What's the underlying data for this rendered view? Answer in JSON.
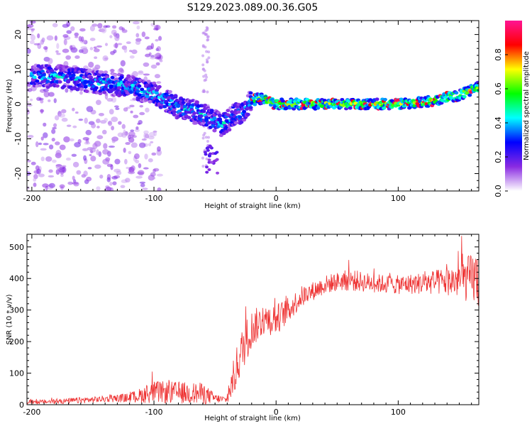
{
  "title": "S129.2023.089.00.36.G05",
  "chart_data": [
    {
      "type": "heatmap",
      "xlabel": "Height of straight line (km)",
      "ylabel": "Frequency (Hz)",
      "xlim": [
        -204,
        166
      ],
      "ylim": [
        -25,
        24
      ],
      "xticks": [
        -200,
        -100,
        0,
        100
      ],
      "yticks": [
        20,
        10,
        0,
        -10,
        -20
      ],
      "colorbar": {
        "label": "Normalized spectral amplitude",
        "range": [
          0.0,
          1.0
        ],
        "ticks": [
          "0.0",
          "0.2",
          "0.4",
          "0.6",
          "0.8"
        ],
        "colormap": [
          "#ffffff",
          "#8a2be2",
          "#0000ff",
          "#00ffff",
          "#00ff00",
          "#ffff00",
          "#ff0000",
          "#ff1493"
        ]
      },
      "ridge": {
        "x": [
          -200,
          -180,
          -160,
          -140,
          -120,
          -100,
          -90,
          -80,
          -70,
          -60,
          -50,
          -45,
          -40,
          -35,
          -30,
          -25,
          -20,
          -15,
          -10,
          -5,
          0,
          20,
          50,
          80,
          100,
          120,
          130,
          140,
          150,
          160,
          166
        ],
        "y": [
          8,
          8,
          7,
          6,
          5,
          3,
          1,
          -1,
          -2,
          -3,
          -5,
          -6,
          -5,
          -3,
          -3,
          -1,
          1,
          1.5,
          1.5,
          0.5,
          0,
          0,
          0,
          0,
          0,
          0.5,
          1,
          2,
          2.5,
          4,
          5
        ]
      }
    },
    {
      "type": "line",
      "xlabel": "Height of straight line (km)",
      "ylabel": "SNR (10 * v/v)",
      "xlim": [
        -204,
        166
      ],
      "ylim": [
        0,
        540
      ],
      "xticks": [
        -200,
        -100,
        0,
        100
      ],
      "yticks": [
        0,
        100,
        200,
        300,
        400,
        500
      ],
      "series_color": "#ee3333",
      "envelope": {
        "x": [
          -204,
          -180,
          -160,
          -140,
          -120,
          -110,
          -100,
          -80,
          -60,
          -50,
          -40,
          -35,
          -30,
          -25,
          -20,
          -10,
          0,
          10,
          20,
          30,
          40,
          50,
          60,
          80,
          100,
          120,
          140,
          150,
          160,
          166
        ],
        "mean": [
          8,
          10,
          14,
          18,
          22,
          30,
          40,
          38,
          35,
          20,
          15,
          80,
          150,
          200,
          240,
          270,
          270,
          300,
          340,
          360,
          380,
          390,
          395,
          385,
          380,
          385,
          390,
          395,
          400,
          400
        ],
        "spread": [
          6,
          8,
          10,
          10,
          15,
          25,
          35,
          35,
          35,
          15,
          10,
          60,
          70,
          70,
          60,
          50,
          50,
          40,
          35,
          30,
          30,
          30,
          35,
          30,
          30,
          35,
          45,
          60,
          80,
          100
        ]
      }
    }
  ]
}
